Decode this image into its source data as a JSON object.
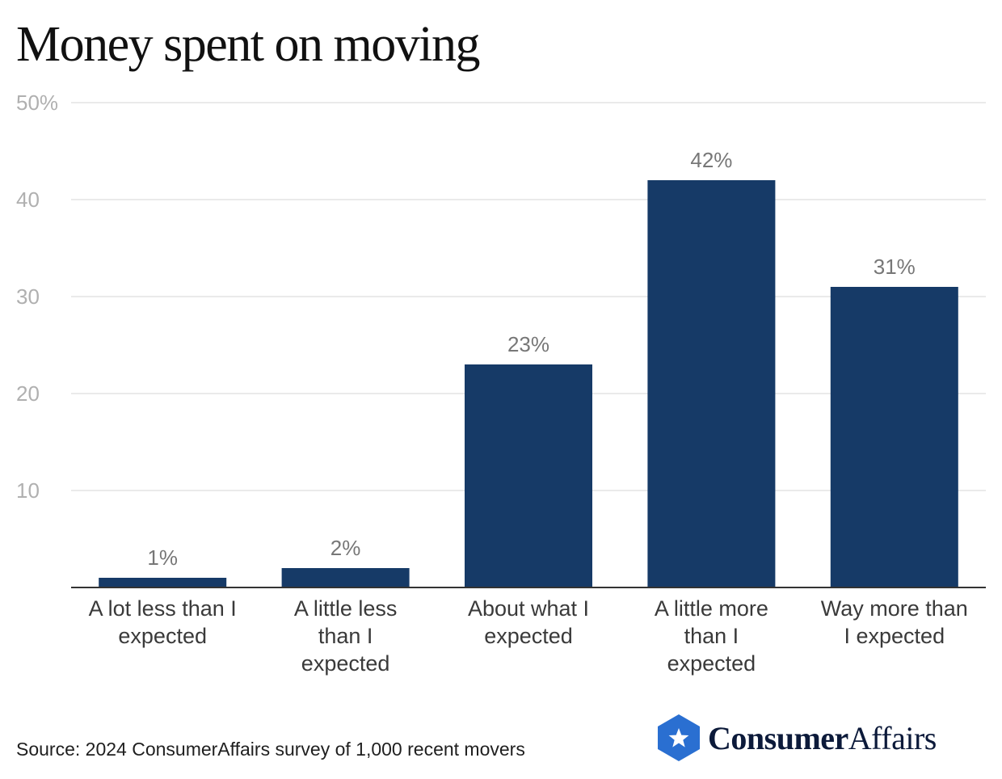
{
  "header": {
    "title": "Money spent on moving"
  },
  "chart_data": {
    "type": "bar",
    "title": "Money spent on moving",
    "categories": [
      [
        "A lot less than I",
        "expected"
      ],
      [
        "A little less",
        "than I",
        "expected"
      ],
      [
        "About what I",
        "expected"
      ],
      [
        "A little more",
        "than I",
        "expected"
      ],
      [
        "Way more than",
        "I expected"
      ]
    ],
    "values": [
      1,
      2,
      23,
      42,
      31
    ],
    "data_labels": [
      "1%",
      "2%",
      "23%",
      "42%",
      "31%"
    ],
    "ylim": [
      0,
      50
    ],
    "yticks": [
      {
        "value": 10,
        "label": "10"
      },
      {
        "value": 20,
        "label": "20"
      },
      {
        "value": 30,
        "label": "30"
      },
      {
        "value": 40,
        "label": "40"
      },
      {
        "value": 50,
        "label": "50%"
      }
    ],
    "grid": true,
    "bar_color": "#163a67",
    "grid_color": "#e3e3e3",
    "tick_color": "#b0b0b0",
    "label_color": "#777777",
    "category_color": "#3a3a3a"
  },
  "footer": {
    "source": "Source: 2024 ConsumerAffairs survey of 1,000 recent movers",
    "logo_part1": "Consumer",
    "logo_part2": "Affairs",
    "logo_icon": "star-hexagon-icon",
    "logo_color": "#2a6fd1"
  }
}
